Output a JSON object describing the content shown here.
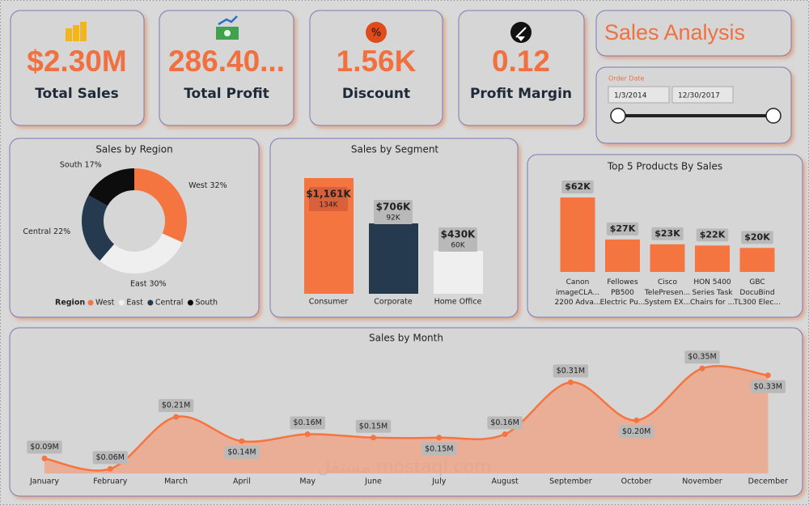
{
  "kpis": [
    {
      "value": "$2.30M",
      "label": "Total Sales"
    },
    {
      "value": "286.40...",
      "label": "Total Profit"
    },
    {
      "value": "1.56K",
      "label": "Discount"
    },
    {
      "value": "0.12",
      "label": "Profit Margin"
    }
  ],
  "title": "Sales Analysis",
  "slicer": {
    "label": "Order Date",
    "from": "1/3/2014",
    "to": "12/30/2017"
  },
  "watermark": "مستقل mostaql.com",
  "chart_data": [
    {
      "type": "donut",
      "title": "Sales by Region",
      "legend_title": "Region",
      "categories": [
        "West",
        "East",
        "Central",
        "South"
      ],
      "values": [
        32,
        30,
        22,
        17
      ],
      "value_labels": [
        "West 32%",
        "East 30%",
        "Central 22%",
        "South 17%"
      ],
      "colors": [
        "#f47540",
        "#efefef",
        "#253a4f",
        "#0d0d0d"
      ]
    },
    {
      "type": "bar",
      "title": "Sales by Segment",
      "categories": [
        "Consumer",
        "Corporate",
        "Home Office"
      ],
      "values": [
        1161,
        706,
        430
      ],
      "value_labels": [
        "$1,161K",
        "$706K",
        "$430K"
      ],
      "secondary_values": [
        134,
        92,
        60
      ],
      "secondary_value_labels": [
        "134K",
        "92K",
        "60K"
      ],
      "colors": [
        "#f47540",
        "#253a4f",
        "#efefef"
      ]
    },
    {
      "type": "bar",
      "title": "Top 5 Products By Sales",
      "categories": [
        "Canon\nimageCLA...\n2200 Adva...",
        "Fellowes\nPB500\nElectric Pu...",
        "Cisco\nTelePresen...\nSystem EX...",
        "HON 5400\nSeries Task\nChairs for ...",
        "GBC\nDocuBind\nTL300 Elec..."
      ],
      "values": [
        62,
        27,
        23,
        22,
        20
      ],
      "value_labels": [
        "$62K",
        "$27K",
        "$23K",
        "$22K",
        "$20K"
      ],
      "color": "#f47540"
    },
    {
      "type": "area",
      "title": "Sales by Month",
      "categories": [
        "January",
        "February",
        "March",
        "April",
        "May",
        "June",
        "July",
        "August",
        "September",
        "October",
        "November",
        "December"
      ],
      "values": [
        0.09,
        0.06,
        0.21,
        0.14,
        0.16,
        0.15,
        0.15,
        0.16,
        0.31,
        0.2,
        0.35,
        0.33
      ],
      "value_labels": [
        "$0.09M",
        "$0.06M",
        "$0.21M",
        "$0.14M",
        "$0.16M",
        "$0.15M",
        "$0.15M",
        "$0.16M",
        "$0.31M",
        "$0.20M",
        "$0.35M",
        "$0.33M"
      ],
      "color": "#f47540"
    }
  ]
}
